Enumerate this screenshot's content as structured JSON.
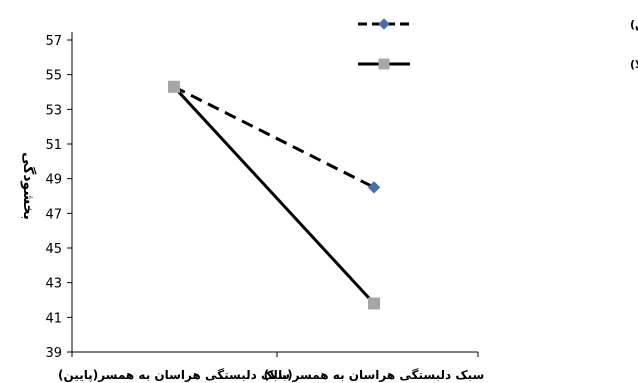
{
  "chart_data": {
    "type": "line",
    "title": "",
    "xlabel": "",
    "ylabel": "بخشودگی",
    "categories": [
      "سبک دلبستگی هراسان به همسر(پایین)",
      "سبک دلبستگی هراسان به همسر(بالا)"
    ],
    "ylim": [
      39,
      57
    ],
    "yticks": [
      39,
      41,
      43,
      45,
      47,
      49,
      51,
      53,
      55,
      57
    ],
    "grid": false,
    "legend_position": "top-right",
    "series": [
      {
        "name": "ادراک سبک دلبستگی اجتنابی مادر(پایین)",
        "values": [
          54.3,
          48.5
        ],
        "line_style": "dashed",
        "marker": "diamond",
        "line_color": "#000000",
        "marker_color": "#4a6fa5"
      },
      {
        "name": "ادراک سبک دلبستگی اجتنابی مادر(بالا)",
        "values": [
          54.3,
          41.8
        ],
        "line_style": "solid",
        "marker": "square",
        "line_color": "#000000",
        "marker_color": "#a6a6a6"
      }
    ]
  }
}
